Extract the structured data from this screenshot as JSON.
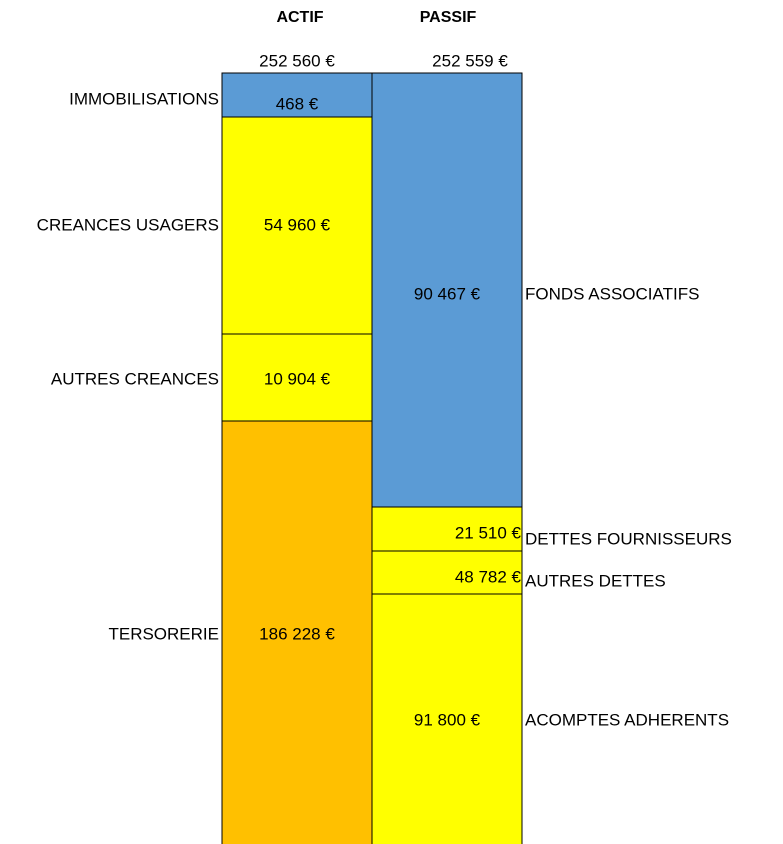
{
  "header": {
    "actif": "ACTIF",
    "passif": "PASSIF"
  },
  "totals": {
    "actif": "252 560 €",
    "passif": "252 559 €"
  },
  "actif": [
    {
      "label": "IMMOBILISATIONS",
      "value": "468 €"
    },
    {
      "label": "CREANCES USAGERS",
      "value": "54 960 €"
    },
    {
      "label": "AUTRES CREANCES",
      "value": "10 904 €"
    },
    {
      "label": "TERSORERIE",
      "value": "186 228 €"
    }
  ],
  "passif": [
    {
      "label": "FONDS ASSOCIATIFS",
      "value": "90 467 €"
    },
    {
      "label": "DETTES FOURNISSEURS",
      "value": "21 510 €"
    },
    {
      "label": "AUTRES DETTES",
      "value": "48 782 €"
    },
    {
      "label": "ACOMPTES ADHERENTS",
      "value": "91 800 €"
    }
  ]
}
